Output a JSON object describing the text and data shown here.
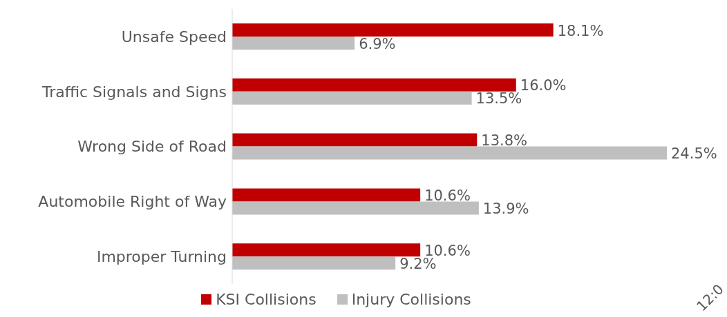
{
  "chart_data": {
    "type": "bar",
    "orientation": "horizontal",
    "categories": [
      "Unsafe Speed",
      "Traffic Signals and Signs",
      "Wrong Side of Road",
      "Automobile Right of Way",
      "Improper Turning"
    ],
    "series": [
      {
        "name": "KSI Collisions",
        "color": "#c00000",
        "values": [
          18.1,
          16.0,
          13.8,
          10.6,
          10.6
        ],
        "value_labels": [
          "18.1%",
          "16.0%",
          "13.8%",
          "10.6%",
          "10.6%"
        ]
      },
      {
        "name": "Injury Collisions",
        "color": "#bfbfbf",
        "values": [
          6.9,
          13.5,
          24.5,
          13.9,
          9.2
        ],
        "value_labels": [
          "6.9%",
          "13.5%",
          "24.5%",
          "13.9%",
          "9.2%"
        ]
      }
    ],
    "legend": "bottom",
    "annotations": [
      "12:0"
    ]
  }
}
